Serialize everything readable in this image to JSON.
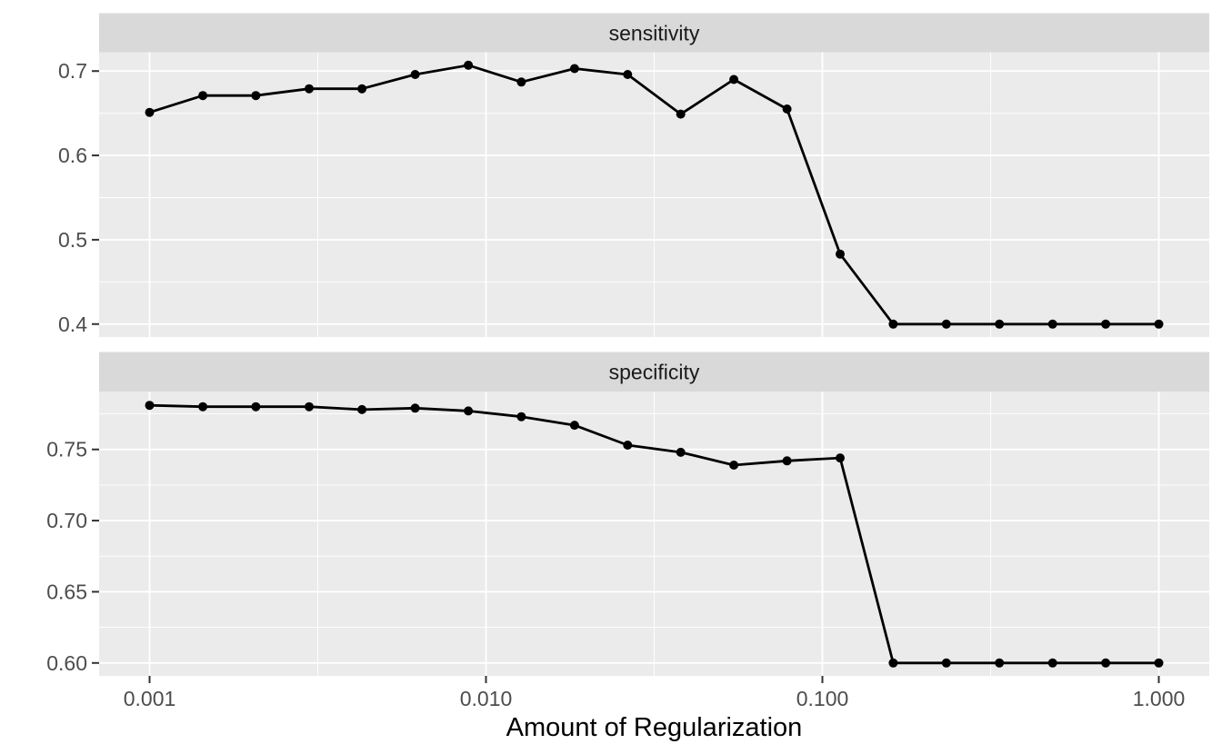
{
  "chart_data": {
    "type": "line",
    "title": "",
    "xlabel": "Amount of Regularization",
    "ylabel": "",
    "x_scale": "log10",
    "grid": true,
    "legend_position": "none",
    "x_log_range": [
      -3.15,
      0.15
    ],
    "x_ticks": {
      "values": [
        0.001,
        0.01,
        0.1,
        1.0
      ],
      "labels": [
        "0.001",
        "0.010",
        "0.100",
        "1.000"
      ]
    },
    "x_minor": [
      0.0031623,
      0.031623,
      0.31623
    ],
    "x": [
      0.001,
      0.00144,
      0.00207,
      0.00298,
      0.00428,
      0.00616,
      0.00886,
      0.01274,
      0.01833,
      0.02637,
      0.03793,
      0.05456,
      0.07848,
      0.11288,
      0.16238,
      0.23357,
      0.33598,
      0.48329,
      0.69519,
      1.0
    ],
    "facets": [
      {
        "label": "sensitivity",
        "ylim": [
          0.38465,
          0.72235
        ],
        "y_ticks": {
          "values": [
            0.4,
            0.5,
            0.6,
            0.7
          ],
          "labels": [
            "0.4",
            "0.5",
            "0.6",
            "0.7"
          ]
        },
        "y_minor": [
          0.45,
          0.55,
          0.65
        ],
        "values": [
          0.651,
          0.671,
          0.671,
          0.679,
          0.679,
          0.696,
          0.707,
          0.687,
          0.703,
          0.696,
          0.649,
          0.69,
          0.655,
          0.483,
          0.4,
          0.4,
          0.4,
          0.4,
          0.4,
          0.4
        ]
      },
      {
        "label": "specificity",
        "ylim": [
          0.59092,
          0.79068
        ],
        "y_ticks": {
          "values": [
            0.6,
            0.65,
            0.7,
            0.75
          ],
          "labels": [
            "0.60",
            "0.65",
            "0.70",
            "0.75"
          ]
        },
        "y_minor": [
          0.625,
          0.675,
          0.725,
          0.775
        ],
        "values": [
          0.781,
          0.78,
          0.78,
          0.78,
          0.778,
          0.779,
          0.777,
          0.773,
          0.767,
          0.753,
          0.748,
          0.739,
          0.742,
          0.744,
          0.6,
          0.6,
          0.6,
          0.6,
          0.6,
          0.6
        ]
      }
    ],
    "style": {
      "background": "#FFFFFF",
      "panel_bg": "#EBEBEB",
      "strip_bg": "#D9D9D9",
      "grid_color": "#FFFFFF",
      "line_color": "#000000",
      "point_color": "#000000",
      "axis_text_color": "#4D4D4D",
      "strip_text_color": "#1A1A1A",
      "axis_title_color": "#000000",
      "tick_color": "#333333"
    }
  }
}
